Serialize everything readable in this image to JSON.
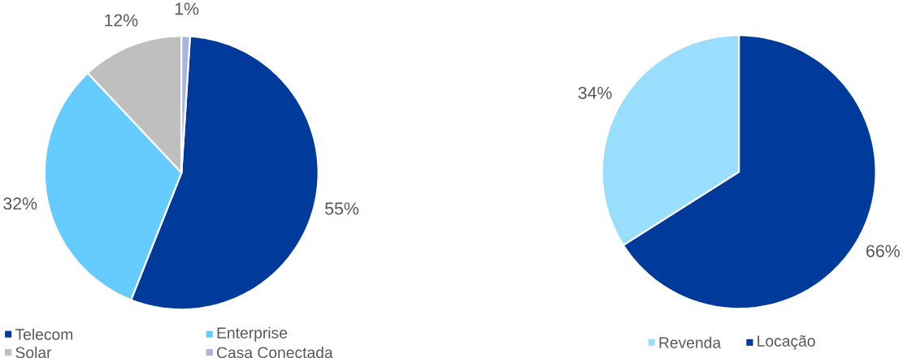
{
  "chart_data": [
    {
      "type": "pie",
      "categories": [
        "Telecom",
        "Enterprise",
        "Solar",
        "Casa Conectada"
      ],
      "values": [
        55,
        32,
        12,
        1
      ],
      "colors": [
        "#003a9b",
        "#66ccff",
        "#bfbfbf",
        "#a9b4e0"
      ],
      "value_labels": [
        "55%",
        "32%",
        "12%",
        "1%"
      ],
      "legend": "bottom"
    },
    {
      "type": "pie",
      "categories": [
        "Revenda",
        "Locação"
      ],
      "values": [
        34,
        66
      ],
      "colors": [
        "#99ddff",
        "#003a9b"
      ],
      "value_labels": [
        "34%",
        "66%"
      ],
      "legend": "bottom"
    }
  ]
}
